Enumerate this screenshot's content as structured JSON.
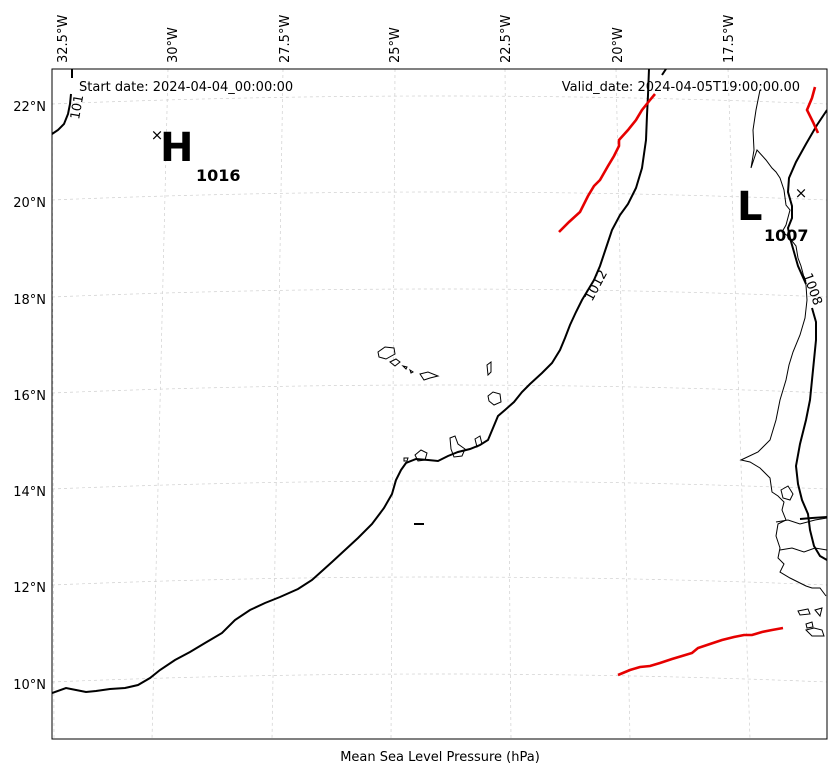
{
  "header": {
    "start_date": "Start date: 2024-04-04_00:00:00",
    "valid_date": "Valid_date: 2024-04-05T19:00:00.00"
  },
  "caption": "Mean Sea Level Pressure (hPa)",
  "longitude_labels": [
    "32.5°W",
    "30°W",
    "27.5°W",
    "25°W",
    "22.5°W",
    "20°W",
    "17.5°W"
  ],
  "latitude_labels": [
    "22°N",
    "20°N",
    "18°N",
    "16°N",
    "14°N",
    "12°N",
    "10°N"
  ],
  "pressure_centers": [
    {
      "type": "H",
      "value": "1016",
      "marker": "×"
    },
    {
      "type": "L",
      "value": "1007",
      "marker": "×"
    }
  ],
  "contour_labels": [
    "101",
    "1012",
    "1008"
  ],
  "colors": {
    "isobar": "#000000",
    "front": "#e60000",
    "grid": "#cfcfcf",
    "coastline": "#000000"
  }
}
